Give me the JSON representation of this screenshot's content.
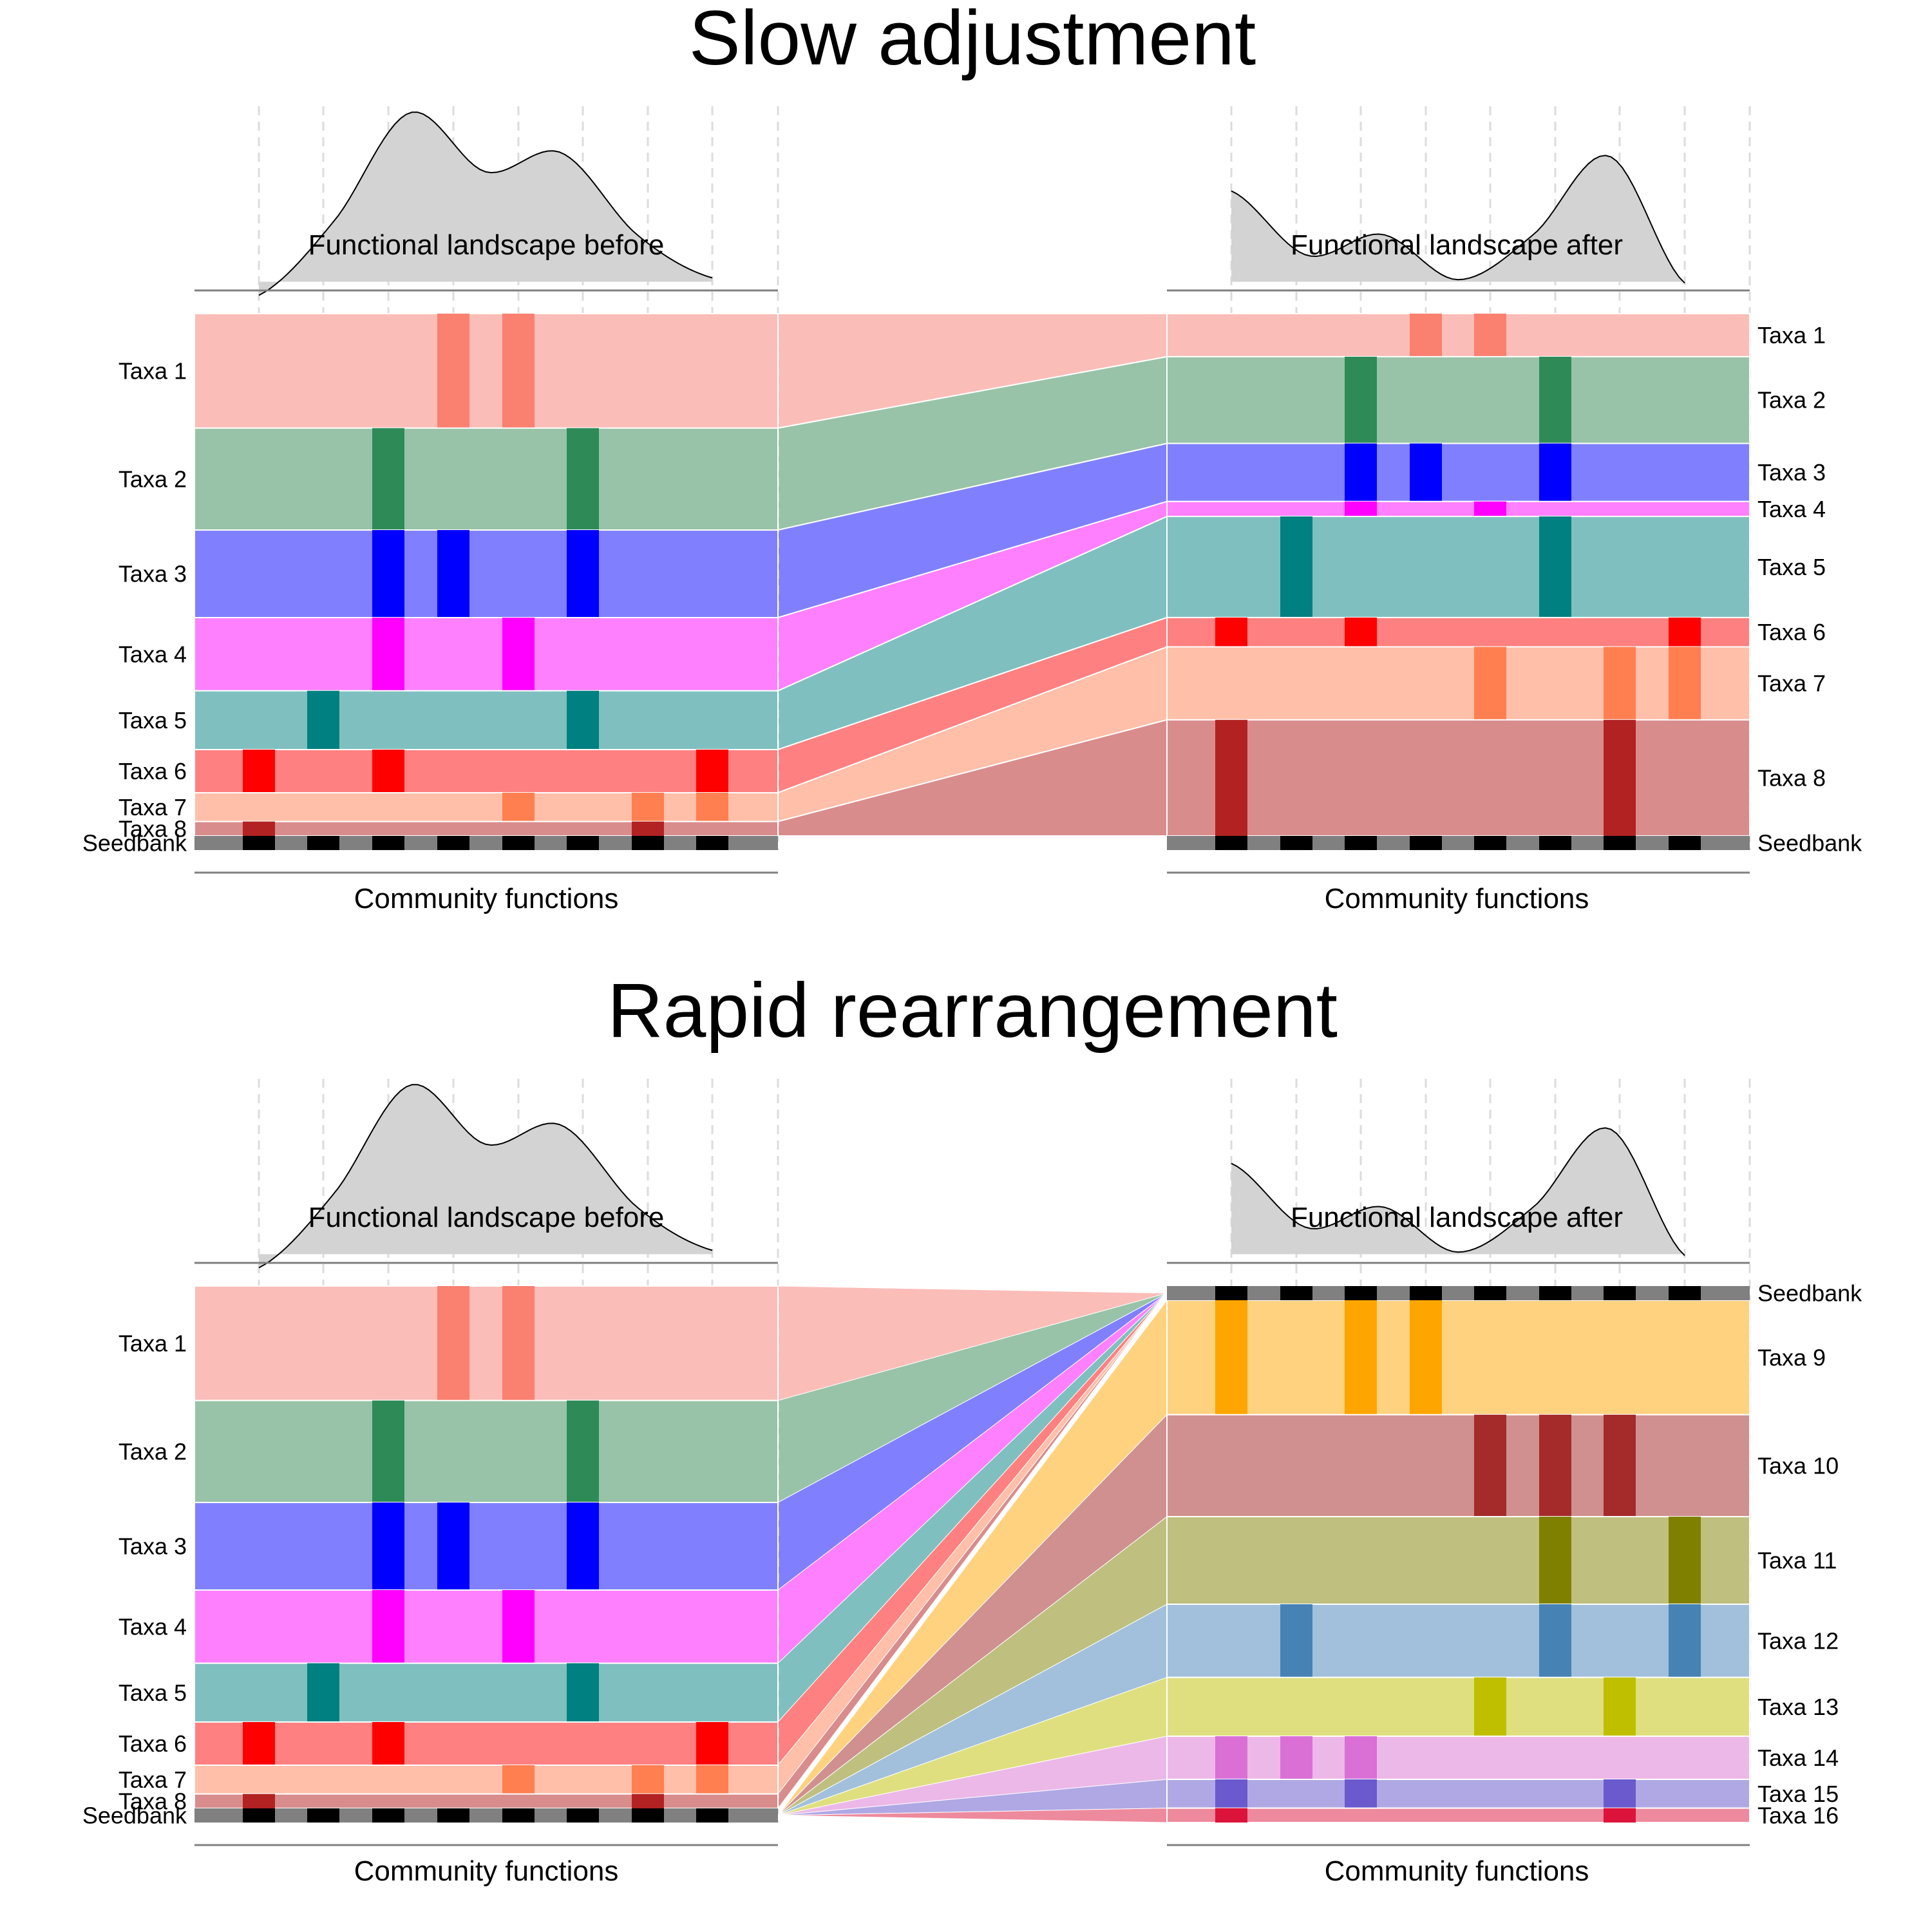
{
  "panels": [
    {
      "title": "Slow adjustment",
      "left_landscape_label": "Functional landscape before",
      "right_landscape_label": "Functional landscape after",
      "left_axis_label": "Community functions",
      "right_axis_label": "Community functions",
      "left_landscape_curve": [
        -0.05,
        0.38,
        1.0,
        0.66,
        0.77,
        0.3,
        0.05
      ],
      "right_landscape_curve": [
        0.55,
        0.18,
        0.3,
        0.04,
        0.3,
        0.75,
        0.02
      ],
      "left_taxa": [
        {
          "label": "Taxa 1",
          "abundance": 0.183,
          "color": "#fbbdb8",
          "dark": "#fa8070",
          "functions": [
            4,
            5
          ]
        },
        {
          "label": "Taxa 2",
          "abundance": 0.163,
          "color": "#98c3a8",
          "dark": "#2e8b57",
          "functions": [
            3,
            6
          ]
        },
        {
          "label": "Taxa 3",
          "abundance": 0.14,
          "color": "#8080ff",
          "dark": "#0000ff",
          "functions": [
            3,
            4,
            6
          ]
        },
        {
          "label": "Taxa 4",
          "abundance": 0.117,
          "color": "#ff80ff",
          "dark": "#ff00ff",
          "functions": [
            3,
            5
          ]
        },
        {
          "label": "Taxa 5",
          "abundance": 0.094,
          "color": "#80bfbf",
          "dark": "#008080",
          "functions": [
            2,
            6
          ]
        },
        {
          "label": "Taxa 6",
          "abundance": 0.069,
          "color": "#ff8080",
          "dark": "#ff0000",
          "functions": [
            1,
            3,
            8
          ]
        },
        {
          "label": "Taxa 7",
          "abundance": 0.046,
          "color": "#ffbfa8",
          "dark": "#ff7f50",
          "functions": [
            5,
            7,
            8
          ]
        },
        {
          "label": "Taxa 8",
          "abundance": 0.023,
          "color": "#d98c8c",
          "dark": "#b22222",
          "functions": [
            1,
            7
          ]
        }
      ],
      "right_taxa": [
        {
          "label": "Taxa 1",
          "abundance": 0.072,
          "color": "#fbbdb8",
          "dark": "#fa8070",
          "functions": [
            4,
            5
          ]
        },
        {
          "label": "Taxa 2",
          "abundance": 0.145,
          "color": "#98c3a8",
          "dark": "#2e8b57",
          "functions": [
            3,
            6
          ]
        },
        {
          "label": "Taxa 3",
          "abundance": 0.097,
          "color": "#8080ff",
          "dark": "#0000ff",
          "functions": [
            3,
            4,
            6
          ]
        },
        {
          "label": "Taxa 4",
          "abundance": 0.025,
          "color": "#ff80ff",
          "dark": "#ff00ff",
          "functions": [
            3,
            5
          ]
        },
        {
          "label": "Taxa 5",
          "abundance": 0.169,
          "color": "#80bfbf",
          "dark": "#008080",
          "functions": [
            2,
            6
          ]
        },
        {
          "label": "Taxa 6",
          "abundance": 0.049,
          "color": "#ff8080",
          "dark": "#ff0000",
          "functions": [
            1,
            3,
            8
          ]
        },
        {
          "label": "Taxa 7",
          "abundance": 0.122,
          "color": "#ffbfa8",
          "dark": "#ff7f50",
          "functions": [
            5,
            7,
            8
          ]
        },
        {
          "label": "Taxa 8",
          "abundance": 0.194,
          "color": "#d98c8c",
          "dark": "#b22222",
          "functions": [
            1,
            7
          ]
        }
      ],
      "seedbank_label": "Seedbank",
      "right_seedbank_position": "bottom"
    },
    {
      "title": "Rapid rearrangement",
      "left_landscape_label": "Functional landscape before",
      "right_landscape_label": "Functional landscape after",
      "left_axis_label": "Community functions",
      "right_axis_label": "Community functions",
      "left_landscape_curve": [
        -0.05,
        0.38,
        1.0,
        0.66,
        0.77,
        0.3,
        0.05
      ],
      "right_landscape_curve": [
        0.55,
        0.18,
        0.3,
        0.04,
        0.3,
        0.75,
        0.02
      ],
      "left_taxa": [
        {
          "label": "Taxa 1",
          "abundance": 0.183,
          "color": "#fbbdb8",
          "dark": "#fa8070",
          "functions": [
            4,
            5
          ]
        },
        {
          "label": "Taxa 2",
          "abundance": 0.163,
          "color": "#98c3a8",
          "dark": "#2e8b57",
          "functions": [
            3,
            6
          ]
        },
        {
          "label": "Taxa 3",
          "abundance": 0.14,
          "color": "#8080ff",
          "dark": "#0000ff",
          "functions": [
            3,
            4,
            6
          ]
        },
        {
          "label": "Taxa 4",
          "abundance": 0.117,
          "color": "#ff80ff",
          "dark": "#ff00ff",
          "functions": [
            3,
            5
          ]
        },
        {
          "label": "Taxa 5",
          "abundance": 0.094,
          "color": "#80bfbf",
          "dark": "#008080",
          "functions": [
            2,
            6
          ]
        },
        {
          "label": "Taxa 6",
          "abundance": 0.069,
          "color": "#ff8080",
          "dark": "#ff0000",
          "functions": [
            1,
            3,
            8
          ]
        },
        {
          "label": "Taxa 7",
          "abundance": 0.046,
          "color": "#ffbfa8",
          "dark": "#ff7f50",
          "functions": [
            5,
            7,
            8
          ]
        },
        {
          "label": "Taxa 8",
          "abundance": 0.023,
          "color": "#d98c8c",
          "dark": "#b22222",
          "functions": [
            1,
            7
          ]
        }
      ],
      "right_taxa": [
        {
          "label": "Taxa 9",
          "abundance": 0.183,
          "color": "#ffd280",
          "dark": "#ffa500",
          "functions": [
            1,
            3,
            4
          ]
        },
        {
          "label": "Taxa 10",
          "abundance": 0.163,
          "color": "#d09090",
          "dark": "#a52a2a",
          "functions": [
            5,
            6,
            7
          ]
        },
        {
          "label": "Taxa 11",
          "abundance": 0.14,
          "color": "#bfbf80",
          "dark": "#808000",
          "functions": [
            6,
            8
          ]
        },
        {
          "label": "Taxa 12",
          "abundance": 0.117,
          "color": "#a2c0db",
          "dark": "#4682b4",
          "functions": [
            2,
            6,
            8
          ]
        },
        {
          "label": "Taxa 13",
          "abundance": 0.094,
          "color": "#dfdf80",
          "dark": "#bfbf00",
          "functions": [
            5,
            7
          ]
        },
        {
          "label": "Taxa 14",
          "abundance": 0.069,
          "color": "#ecb8e8",
          "dark": "#da70d6",
          "functions": [
            1,
            2,
            3
          ]
        },
        {
          "label": "Taxa 15",
          "abundance": 0.046,
          "color": "#b0a8e4",
          "dark": "#6a5acd",
          "functions": [
            1,
            3,
            7
          ]
        },
        {
          "label": "Taxa 16",
          "abundance": 0.023,
          "color": "#ee8a9d",
          "dark": "#dc143c",
          "functions": [
            1,
            7
          ]
        }
      ],
      "seedbank_label": "Seedbank",
      "right_seedbank_position": "top"
    }
  ],
  "colors": {
    "landscape_fill": "#d3d3d3",
    "seedbank_bar": "#808080",
    "seedbank_marker": "#000000",
    "axis_line": "#808080",
    "grid_line": "#dcdcdc"
  }
}
